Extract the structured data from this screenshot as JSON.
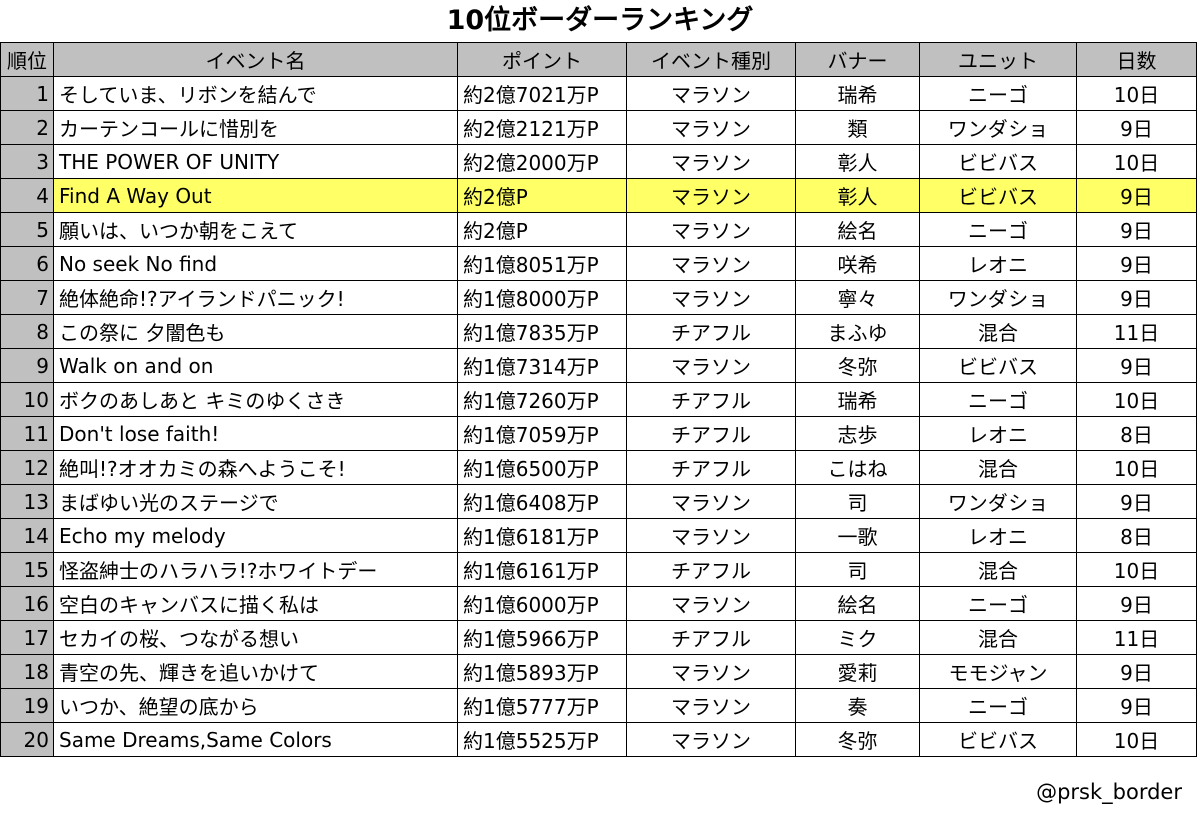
{
  "title": "10位ボーダーランキング",
  "credit": "@prsk_border",
  "highlight_color": "#ffff66",
  "header_color": "#c0c0c0",
  "columns": [
    "順位",
    "イベント名",
    "ポイント",
    "イベント種別",
    "バナー",
    "ユニット",
    "日数"
  ],
  "rows": [
    {
      "rank": "1",
      "name": "そしていま、リボンを結んで",
      "points": "約2億7021万P",
      "type": "マラソン",
      "banner": "瑞希",
      "unit": "ニーゴ",
      "days": "10日"
    },
    {
      "rank": "2",
      "name": "カーテンコールに惜別を",
      "points": "約2億2121万P",
      "type": "マラソン",
      "banner": "類",
      "unit": "ワンダショ",
      "days": "9日"
    },
    {
      "rank": "3",
      "name": "THE POWER OF UNITY",
      "points": "約2億2000万P",
      "type": "マラソン",
      "banner": "彰人",
      "unit": "ビビバス",
      "days": "10日"
    },
    {
      "rank": "4",
      "name": "Find A Way Out",
      "points": "約2億P",
      "type": "マラソン",
      "banner": "彰人",
      "unit": "ビビバス",
      "days": "9日",
      "highlight": true
    },
    {
      "rank": "5",
      "name": "願いは、いつか朝をこえて",
      "points": "約2億P",
      "type": "マラソン",
      "banner": "絵名",
      "unit": "ニーゴ",
      "days": "9日"
    },
    {
      "rank": "6",
      "name": "No seek No find",
      "points": "約1億8051万P",
      "type": "マラソン",
      "banner": "咲希",
      "unit": "レオニ",
      "days": "9日"
    },
    {
      "rank": "7",
      "name": "絶体絶命!?アイランドパニック!",
      "points": "約1億8000万P",
      "type": "マラソン",
      "banner": "寧々",
      "unit": "ワンダショ",
      "days": "9日"
    },
    {
      "rank": "8",
      "name": "この祭に 夕闇色も",
      "points": "約1億7835万P",
      "type": "チアフル",
      "banner": "まふゆ",
      "unit": "混合",
      "days": "11日"
    },
    {
      "rank": "9",
      "name": "Walk on and on",
      "points": "約1億7314万P",
      "type": "マラソン",
      "banner": "冬弥",
      "unit": "ビビバス",
      "days": "9日"
    },
    {
      "rank": "10",
      "name": "ボクのあしあと キミのゆくさき",
      "points": "約1億7260万P",
      "type": "チアフル",
      "banner": "瑞希",
      "unit": "ニーゴ",
      "days": "10日"
    },
    {
      "rank": "11",
      "name": "Don't lose faith!",
      "points": "約1億7059万P",
      "type": "チアフル",
      "banner": "志歩",
      "unit": "レオニ",
      "days": "8日"
    },
    {
      "rank": "12",
      "name": "絶叫!?オオカミの森へようこそ!",
      "points": "約1億6500万P",
      "type": "チアフル",
      "banner": "こはね",
      "unit": "混合",
      "days": "10日"
    },
    {
      "rank": "13",
      "name": "まばゆい光のステージで",
      "points": "約1億6408万P",
      "type": "マラソン",
      "banner": "司",
      "unit": "ワンダショ",
      "days": "9日"
    },
    {
      "rank": "14",
      "name": "Echo my melody",
      "points": "約1億6181万P",
      "type": "マラソン",
      "banner": "一歌",
      "unit": "レオニ",
      "days": "8日"
    },
    {
      "rank": "15",
      "name": "怪盗紳士のハラハラ!?ホワイトデー",
      "points": "約1億6161万P",
      "type": "チアフル",
      "banner": "司",
      "unit": "混合",
      "days": "10日"
    },
    {
      "rank": "16",
      "name": "空白のキャンバスに描く私は",
      "points": "約1億6000万P",
      "type": "マラソン",
      "banner": "絵名",
      "unit": "ニーゴ",
      "days": "9日"
    },
    {
      "rank": "17",
      "name": "セカイの桜、つながる想い",
      "points": "約1億5966万P",
      "type": "チアフル",
      "banner": "ミク",
      "unit": "混合",
      "days": "11日"
    },
    {
      "rank": "18",
      "name": "青空の先、輝きを追いかけて",
      "points": "約1億5893万P",
      "type": "マラソン",
      "banner": "愛莉",
      "unit": "モモジャン",
      "days": "9日"
    },
    {
      "rank": "19",
      "name": "いつか、絶望の底から",
      "points": "約1億5777万P",
      "type": "マラソン",
      "banner": "奏",
      "unit": "ニーゴ",
      "days": "9日"
    },
    {
      "rank": "20",
      "name": "Same Dreams,Same Colors",
      "points": "約1億5525万P",
      "type": "マラソン",
      "banner": "冬弥",
      "unit": "ビビバス",
      "days": "10日"
    }
  ]
}
